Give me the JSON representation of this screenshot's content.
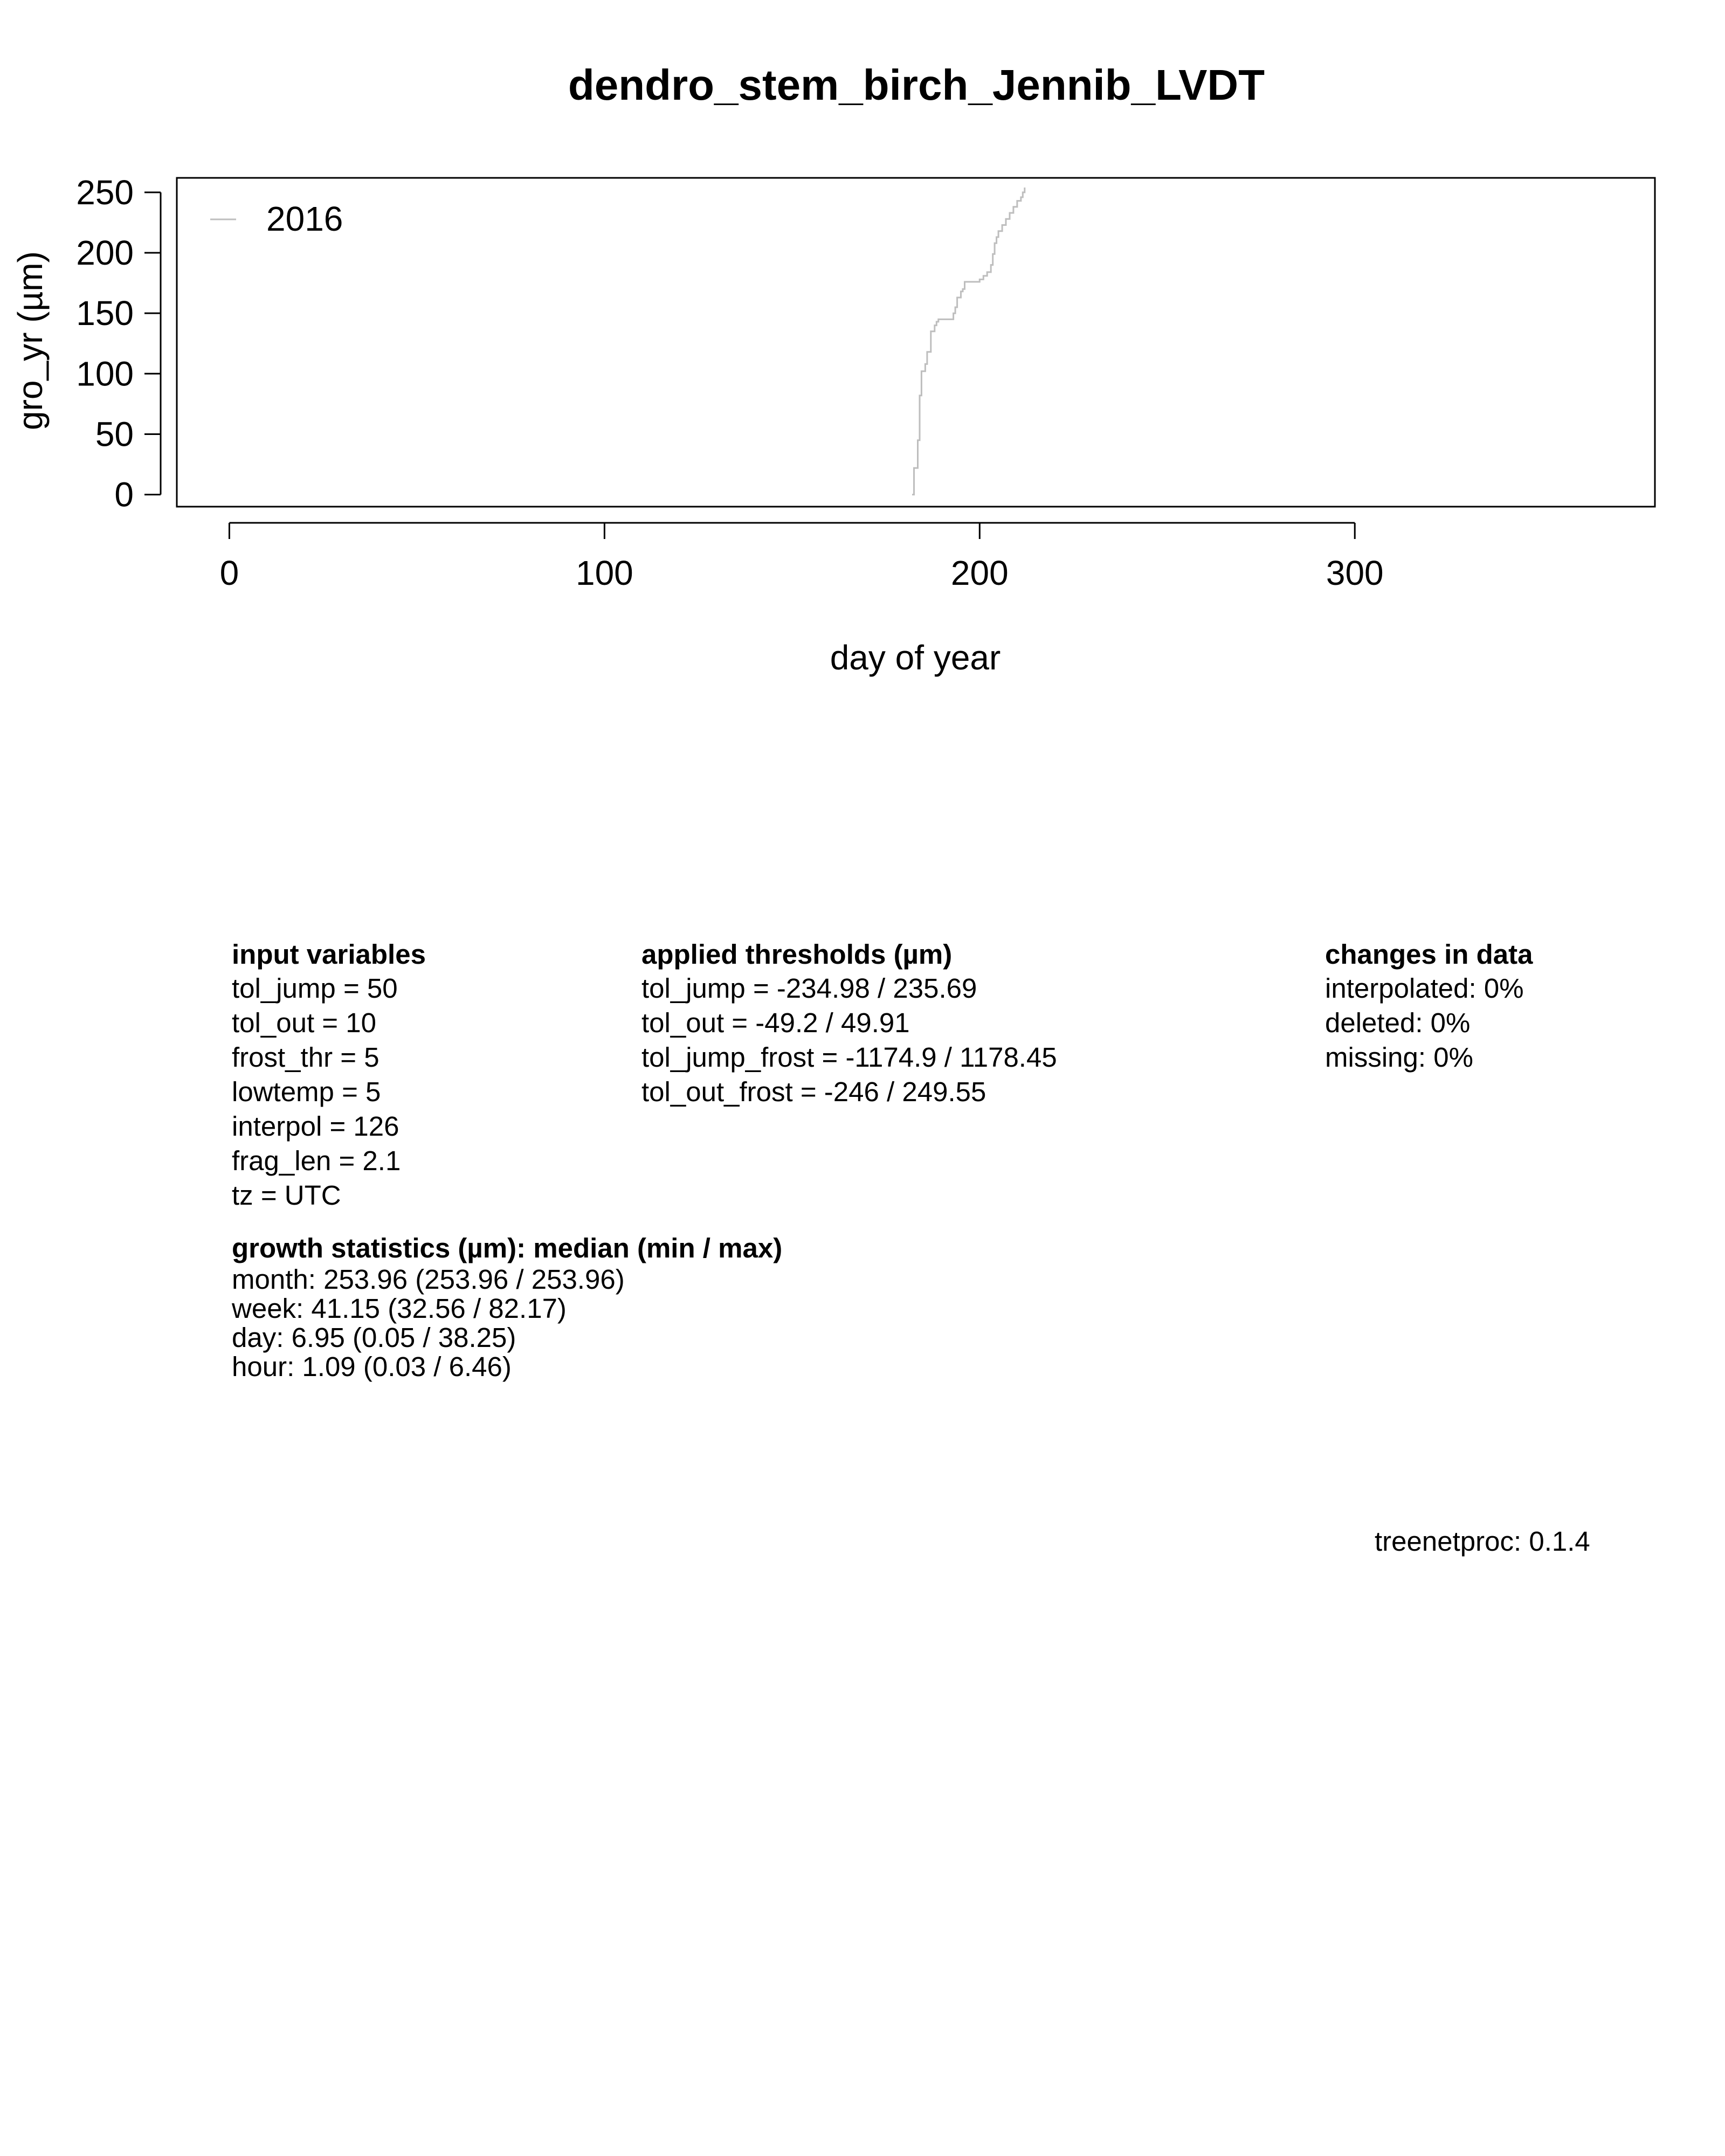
{
  "chart_data": {
    "type": "line",
    "title": "dendro_stem_birch_Jennib_LVDT",
    "xlabel": "day of year",
    "ylabel": "gro_yr (µm)",
    "xlim": [
      -14,
      380
    ],
    "ylim": [
      -10,
      262
    ],
    "xticks": [
      0,
      100,
      200,
      300
    ],
    "yticks": [
      0,
      50,
      100,
      150,
      200,
      250
    ],
    "legend_position": "top-left",
    "grid": false,
    "series": [
      {
        "name": "2016",
        "color": "#bebebe",
        "step": true,
        "x": [
          182,
          182.5,
          183.5,
          184,
          184.5,
          185.5,
          186,
          187,
          188,
          188.5,
          189,
          190,
          191.5,
          193,
          193.5,
          194,
          195,
          195.5,
          196,
          197,
          198,
          200,
          201,
          202,
          203,
          203.5,
          204,
          204.5,
          205,
          206,
          207,
          208,
          209,
          210,
          211,
          211.5,
          212
        ],
        "y": [
          0,
          22,
          45,
          82,
          102,
          108,
          118,
          135,
          140,
          143,
          145,
          145,
          145,
          150,
          155,
          163,
          168,
          170,
          176,
          176,
          176,
          178,
          181,
          184,
          190,
          199,
          208,
          213,
          218,
          223,
          228,
          233,
          238,
          243,
          246,
          250,
          254
        ]
      }
    ]
  },
  "info": {
    "input_header": "input variables",
    "input_lines": [
      "tol_jump = 50",
      "tol_out = 10",
      "frost_thr = 5",
      "lowtemp = 5",
      "interpol = 126",
      "frag_len = 2.1",
      "tz = UTC"
    ],
    "thresholds_header": "applied thresholds (µm)",
    "thresholds_lines": [
      "tol_jump = -234.98 / 235.69",
      "tol_out = -49.2 / 49.91",
      "tol_jump_frost = -1174.9 / 1178.45",
      "tol_out_frost = -246 / 249.55"
    ],
    "changes_header": "changes in data",
    "changes_lines": [
      "interpolated: 0%",
      "deleted: 0%",
      "missing: 0%"
    ],
    "stats_header": "growth statistics (µm): median (min / max)",
    "stats_lines": [
      "month: 253.96 (253.96 / 253.96)",
      "week: 41.15 (32.56 / 82.17)",
      "day: 6.95 (0.05 / 38.25)",
      "hour: 1.09 (0.03 / 6.46)"
    ],
    "footer": "treenetproc: 0.1.4"
  }
}
